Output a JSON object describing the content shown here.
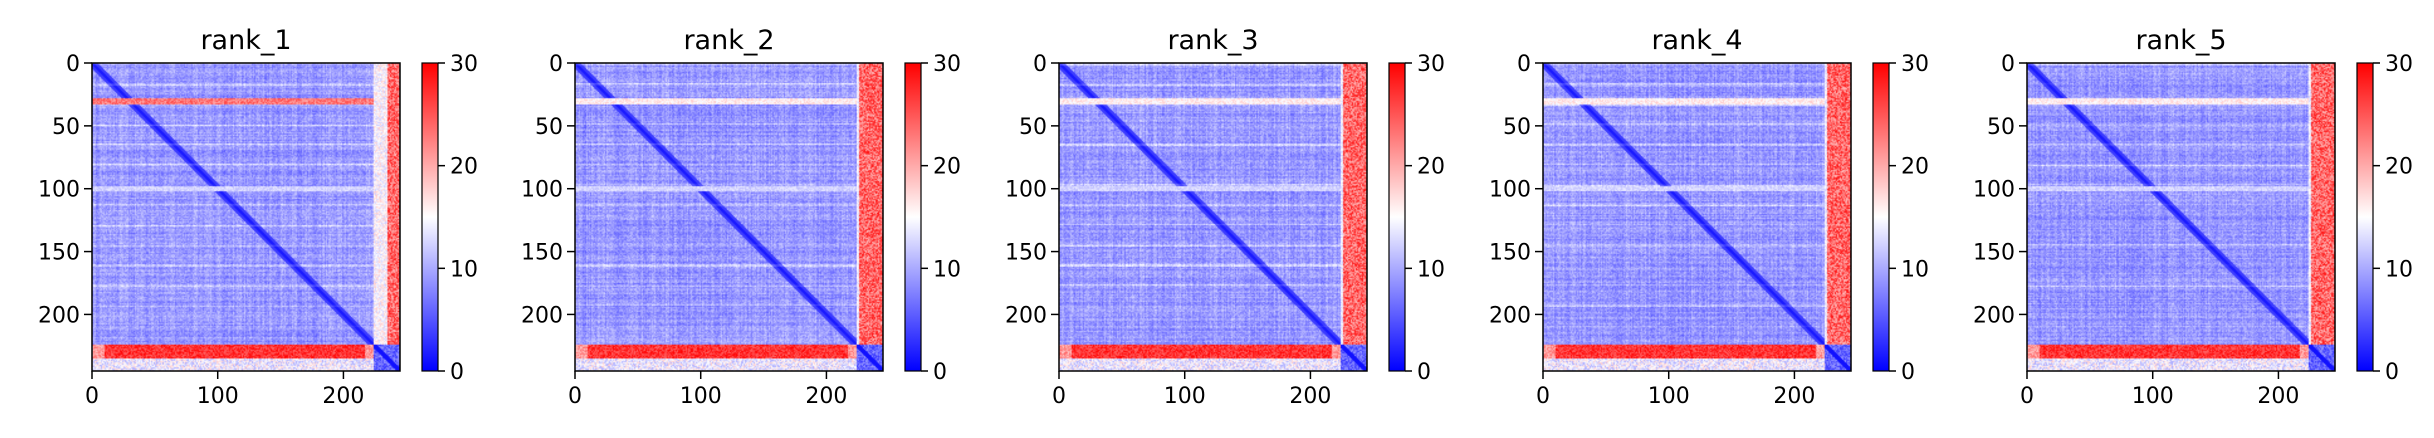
{
  "chart_data": [
    {
      "type": "heatmap",
      "title": "rank_1",
      "variant": 1,
      "x_ticks": [
        "0",
        "100",
        "200"
      ],
      "y_ticks": [
        "0",
        "50",
        "100",
        "150",
        "200"
      ],
      "xlim": [
        0,
        245
      ],
      "ylim": [
        245,
        0
      ],
      "n": 245,
      "colorbar": {
        "ticks": [
          "0",
          "10",
          "20",
          "30"
        ],
        "range": [
          0,
          30
        ],
        "cmap": "bwr"
      }
    },
    {
      "type": "heatmap",
      "title": "rank_2",
      "variant": 2,
      "x_ticks": [
        "0",
        "100",
        "200"
      ],
      "y_ticks": [
        "0",
        "50",
        "100",
        "150",
        "200"
      ],
      "xlim": [
        0,
        245
      ],
      "ylim": [
        245,
        0
      ],
      "n": 245,
      "colorbar": {
        "ticks": [
          "0",
          "10",
          "20",
          "30"
        ],
        "range": [
          0,
          30
        ],
        "cmap": "bwr"
      }
    },
    {
      "type": "heatmap",
      "title": "rank_3",
      "variant": 3,
      "x_ticks": [
        "0",
        "100",
        "200"
      ],
      "y_ticks": [
        "0",
        "50",
        "100",
        "150",
        "200"
      ],
      "xlim": [
        0,
        245
      ],
      "ylim": [
        245,
        0
      ],
      "n": 245,
      "colorbar": {
        "ticks": [
          "0",
          "10",
          "20",
          "30"
        ],
        "range": [
          0,
          30
        ],
        "cmap": "bwr"
      }
    },
    {
      "type": "heatmap",
      "title": "rank_4",
      "variant": 4,
      "x_ticks": [
        "0",
        "100",
        "200"
      ],
      "y_ticks": [
        "0",
        "50",
        "100",
        "150",
        "200"
      ],
      "xlim": [
        0,
        245
      ],
      "ylim": [
        245,
        0
      ],
      "n": 245,
      "colorbar": {
        "ticks": [
          "0",
          "10",
          "20",
          "30"
        ],
        "range": [
          0,
          30
        ],
        "cmap": "bwr"
      }
    },
    {
      "type": "heatmap",
      "title": "rank_5",
      "variant": 5,
      "x_ticks": [
        "0",
        "100",
        "200"
      ],
      "y_ticks": [
        "0",
        "50",
        "100",
        "150",
        "200"
      ],
      "xlim": [
        0,
        245
      ],
      "ylim": [
        245,
        0
      ],
      "n": 245,
      "colorbar": {
        "ticks": [
          "0",
          "10",
          "20",
          "30"
        ],
        "range": [
          0,
          30
        ],
        "cmap": "bwr"
      }
    }
  ]
}
